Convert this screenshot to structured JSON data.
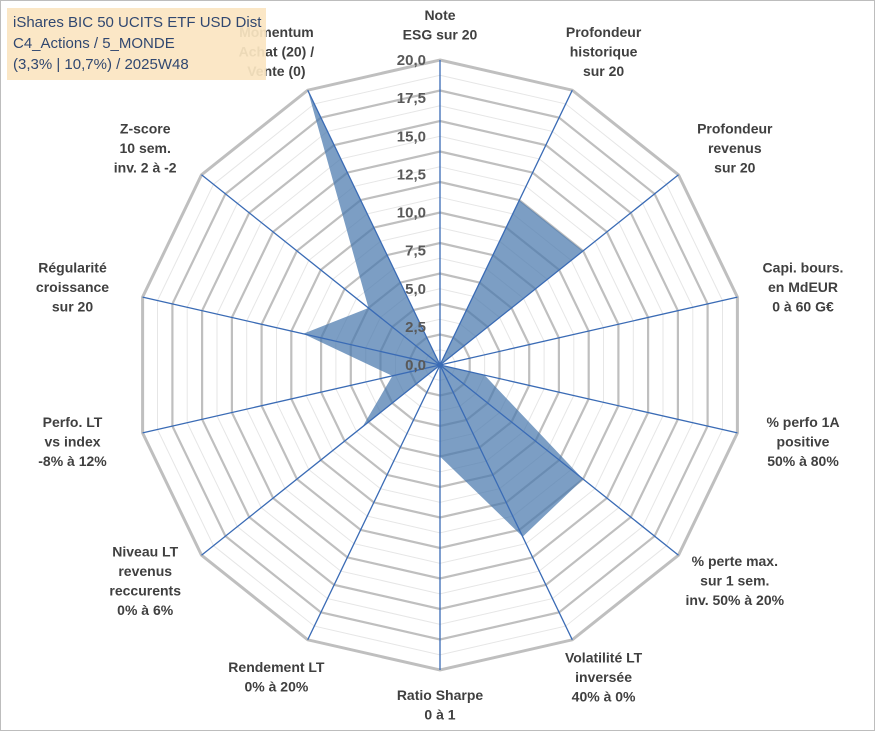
{
  "chart_data": {
    "type": "radar",
    "title_lines": [
      "iShares BIC 50 UCITS ETF USD Dist",
      "C4_Actions / 5_MONDE",
      "(3,3% | 10,7%) / 2025W48"
    ],
    "axes": [
      {
        "lines": [
          "Note",
          "ESG sur 20"
        ]
      },
      {
        "lines": [
          "Profondeur",
          "historique",
          "sur 20"
        ]
      },
      {
        "lines": [
          "Profondeur",
          "revenus",
          "sur 20"
        ]
      },
      {
        "lines": [
          "Capi. bours.",
          "en MdEUR",
          "0 à 60 G€"
        ]
      },
      {
        "lines": [
          "% perfo 1A",
          "positive",
          "50% à 80%"
        ]
      },
      {
        "lines": [
          "% perte max.",
          "sur 1 sem.",
          "inv. 50% à 20%"
        ]
      },
      {
        "lines": [
          "Volatilité LT",
          "inversée",
          "40% à 0%"
        ]
      },
      {
        "lines": [
          "Ratio Sharpe",
          "0 à 1"
        ]
      },
      {
        "lines": [
          "Rendement LT",
          "0% à 20%"
        ]
      },
      {
        "lines": [
          "Niveau LT",
          "revenus",
          "reccurents",
          "0% à 6%"
        ]
      },
      {
        "lines": [
          "Perfo. LT",
          "vs index",
          "-8% à 12%"
        ]
      },
      {
        "lines": [
          "Régularité",
          "croissance",
          "sur 20"
        ]
      },
      {
        "lines": [
          "Z-score",
          "10 sem.",
          "inv. 2 à -2"
        ]
      },
      {
        "lines": [
          "Momentum",
          "Achat (20) /",
          "Vente (0)"
        ]
      }
    ],
    "values": [
      0,
      12.0,
      12.0,
      0,
      3.0,
      12.0,
      12.5,
      6.0,
      0,
      6.5,
      3.2,
      9.2,
      6.0,
      20.0
    ],
    "rmin": 0,
    "rmax": 20,
    "ticks": [
      "0,0",
      "2,5",
      "5,0",
      "7,5",
      "10,0",
      "12,5",
      "15,0",
      "17,5",
      "20,0"
    ],
    "grid_rings": 20,
    "colors": {
      "fill": "#4a79ad",
      "spoke": "#3a6bb5",
      "outer_ring": "#bfbfbf",
      "inner_ring": "#e6e6e6"
    }
  }
}
